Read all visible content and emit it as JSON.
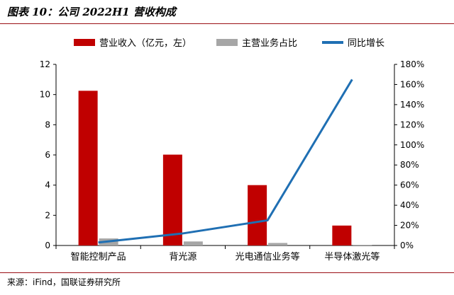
{
  "header": {
    "title": "图表 10：公司 2022H1 营收构成"
  },
  "footer": {
    "source": "来源：iFind，国联证券研究所"
  },
  "colors": {
    "revenue": "#c00000",
    "share": "#a6a6a6",
    "growth": "#1f6fb3",
    "rule": "#9a0f15"
  },
  "chart_data": {
    "type": "bar",
    "categories": [
      "智能控制产品",
      "背光源",
      "光电通信业务等",
      "半导体激光等"
    ],
    "series": [
      {
        "name": "营业收入（亿元，左）",
        "type": "bar",
        "axis": "left",
        "values": [
          10.25,
          6.02,
          4.0,
          1.32
        ]
      },
      {
        "name": "主营业务占比",
        "type": "bar",
        "axis": "right",
        "values": [
          7,
          4,
          2.5,
          0.6
        ]
      },
      {
        "name": "同比增长",
        "type": "line",
        "axis": "right",
        "values": [
          3,
          12,
          25,
          165
        ]
      }
    ],
    "y_left": {
      "min": 0,
      "max": 12,
      "ticks": [
        "0",
        "2",
        "4",
        "6",
        "8",
        "10",
        "12"
      ]
    },
    "y_right": {
      "min": 0,
      "max": 180,
      "ticks": [
        "0%",
        "20%",
        "40%",
        "60%",
        "80%",
        "100%",
        "120%",
        "140%",
        "160%",
        "180%"
      ]
    },
    "legend_position": "top",
    "grid": false
  }
}
